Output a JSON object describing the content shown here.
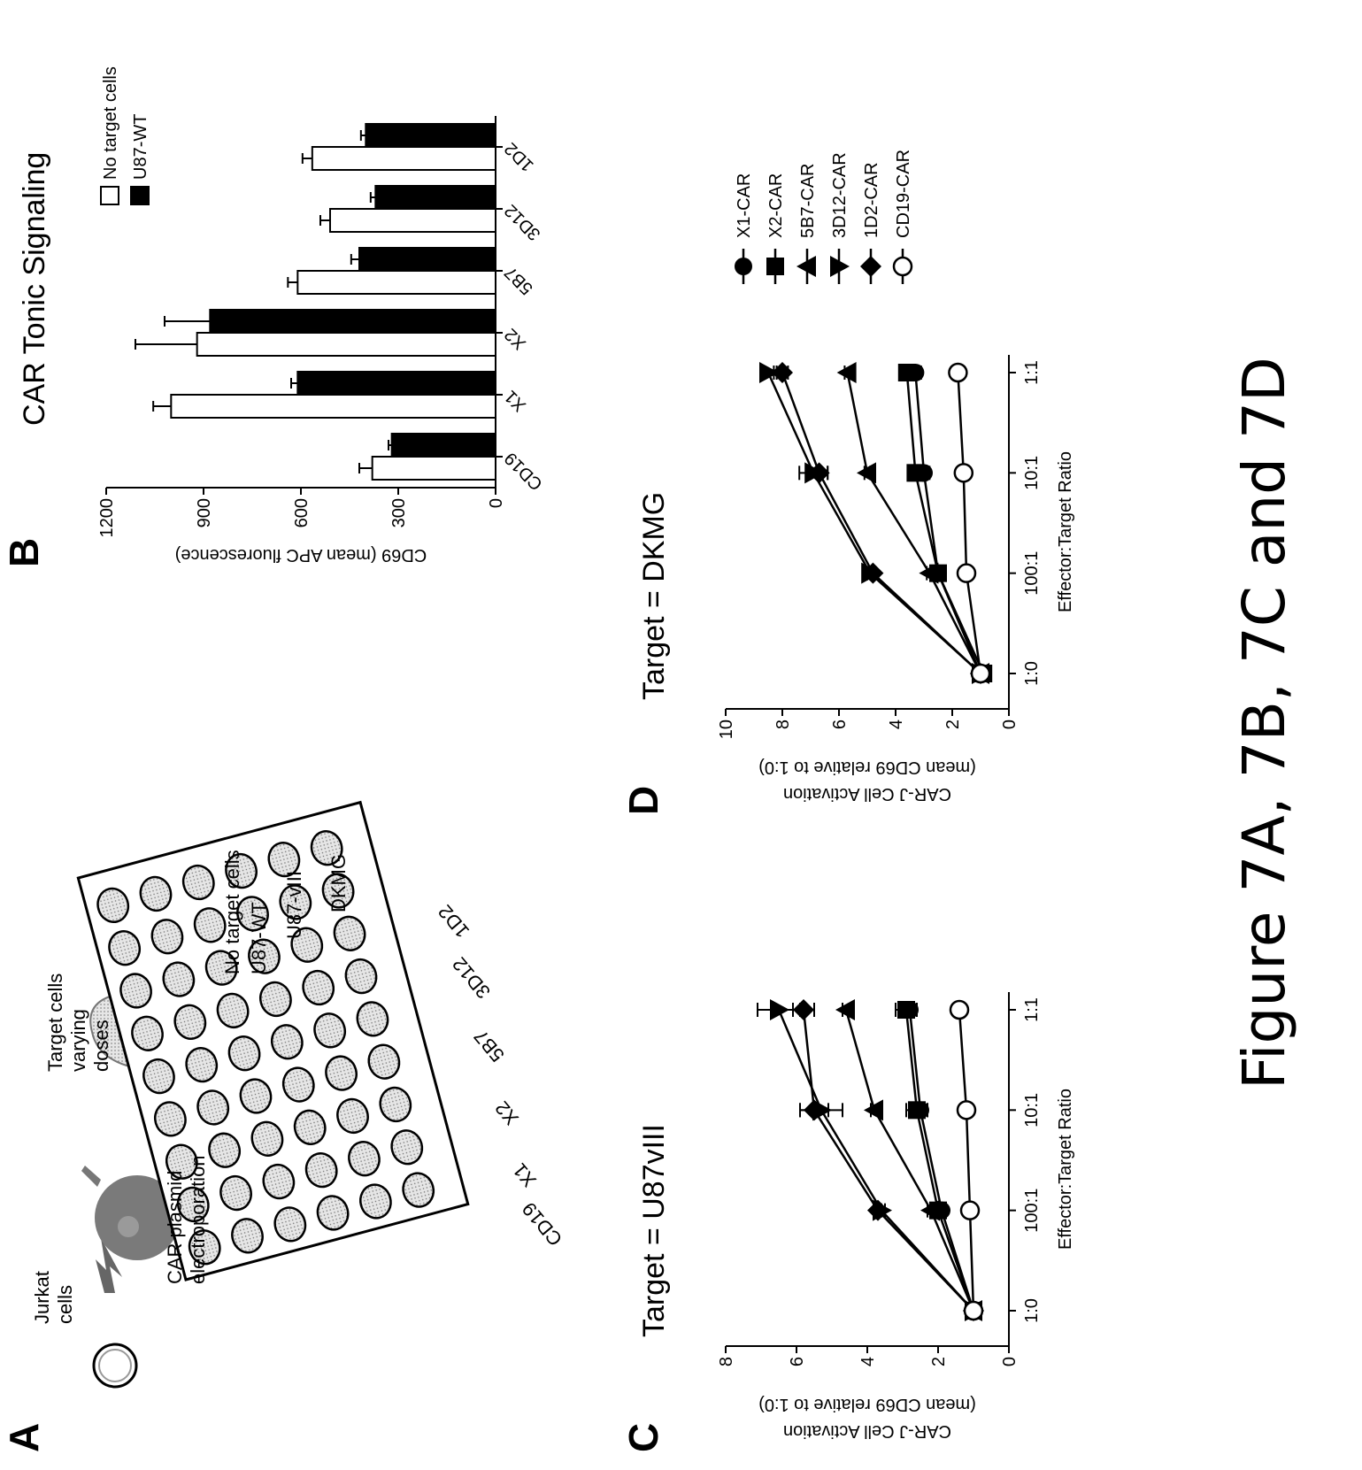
{
  "figure": {
    "caption": "Figure 7A, 7B, 7C and 7D"
  },
  "panel_a": {
    "letter": "A",
    "labels": {
      "jurkat": "Jurkat cells",
      "target": "Target cells varying doses",
      "plasmid": "CAR plasmid electroporation",
      "no_target": "No target cells",
      "u87wt": "U87-WT",
      "u87viii": "U87-vIII",
      "dkmg": "DKMG"
    },
    "column_labels": [
      "CD19",
      "X1",
      "X2",
      "5B7",
      "3D12",
      "1D2"
    ]
  },
  "chart_data": [
    {
      "panel": "B",
      "type": "bar",
      "title": "CAR Tonic Signaling",
      "xlabel": "",
      "ylabel": "CD69 (mean APC fluorescence)",
      "ylim": [
        0,
        1200
      ],
      "yticks": [
        0,
        300,
        600,
        900,
        1200
      ],
      "categories": [
        "CD19",
        "X1",
        "X2",
        "5B7",
        "3D12",
        "1D2"
      ],
      "legend_position": "top-right",
      "series": [
        {
          "name": "No target cells",
          "color": "#ffffff",
          "values": [
            380,
            1000,
            920,
            610,
            510,
            565
          ],
          "errors": [
            40,
            55,
            190,
            30,
            30,
            30
          ]
        },
        {
          "name": "U87-WT",
          "color": "#000000",
          "values": [
            320,
            610,
            880,
            420,
            370,
            400
          ],
          "errors": [
            10,
            20,
            140,
            25,
            15,
            15
          ]
        }
      ]
    },
    {
      "panel": "C",
      "type": "line",
      "title": "Target = U87vIII",
      "xlabel": "Effector:Target Ratio",
      "ylabel": "CAR-J Cell Activation (mean CD69 relative to 1:0)",
      "ylim": [
        0,
        8
      ],
      "yticks": [
        0,
        2,
        4,
        6,
        8
      ],
      "x": [
        "1:0",
        "100:1",
        "10:1",
        "1:1"
      ],
      "series": [
        {
          "name": "X1-CAR",
          "marker": "circle-filled",
          "values": [
            1.0,
            1.9,
            2.5,
            2.8
          ],
          "errors": [
            0,
            0.1,
            0.2,
            0.2
          ]
        },
        {
          "name": "X2-CAR",
          "marker": "square-filled",
          "values": [
            1.0,
            2.0,
            2.6,
            2.9
          ],
          "errors": [
            0,
            0.1,
            0.3,
            0.3
          ]
        },
        {
          "name": "5B7-CAR",
          "marker": "triangle-up-filled",
          "values": [
            1.0,
            2.2,
            3.8,
            4.6
          ],
          "errors": [
            0,
            0.1,
            0.1,
            0.1
          ]
        },
        {
          "name": "3D12-CAR",
          "marker": "triangle-down-filled",
          "values": [
            1.0,
            3.6,
            5.3,
            6.5
          ],
          "errors": [
            0,
            0.1,
            0.6,
            0.6
          ]
        },
        {
          "name": "1D2-CAR",
          "marker": "diamond-filled",
          "values": [
            1.0,
            3.7,
            5.5,
            5.8
          ],
          "errors": [
            0,
            0.1,
            0.4,
            0.3
          ]
        },
        {
          "name": "CD19-CAR",
          "marker": "circle-open",
          "values": [
            1.0,
            1.1,
            1.2,
            1.4
          ],
          "errors": [
            0,
            0.05,
            0.05,
            0.05
          ]
        }
      ]
    },
    {
      "panel": "D",
      "type": "line",
      "title": "Target = DKMG",
      "xlabel": "Effector:Target Ratio",
      "ylabel": "CAR-J Cell Activation (mean CD69 relative to 1:0)",
      "ylim": [
        0,
        10
      ],
      "yticks": [
        0,
        2,
        4,
        6,
        8,
        10
      ],
      "x": [
        "1:0",
        "100:1",
        "10:1",
        "1:1"
      ],
      "legend_position": "right",
      "series": [
        {
          "name": "X1-CAR",
          "marker": "circle-filled",
          "values": [
            1.0,
            2.5,
            3.0,
            3.3
          ],
          "errors": [
            0,
            0.1,
            0.2,
            0.2
          ]
        },
        {
          "name": "X2-CAR",
          "marker": "square-filled",
          "values": [
            0.9,
            2.5,
            3.3,
            3.6
          ],
          "errors": [
            0,
            0.1,
            0.2,
            0.2
          ]
        },
        {
          "name": "5B7-CAR",
          "marker": "triangle-up-filled",
          "values": [
            1.0,
            2.8,
            5.0,
            5.7
          ],
          "errors": [
            0,
            0.1,
            0.1,
            0.1
          ]
        },
        {
          "name": "3D12-CAR",
          "marker": "triangle-down-filled",
          "values": [
            1.0,
            4.9,
            6.9,
            8.5
          ],
          "errors": [
            0,
            0.1,
            0.5,
            0.2
          ]
        },
        {
          "name": "1D2-CAR",
          "marker": "diamond-filled",
          "values": [
            1.0,
            4.8,
            6.7,
            8.0
          ],
          "errors": [
            0,
            0.1,
            0.3,
            0.2
          ]
        },
        {
          "name": "CD19-CAR",
          "marker": "circle-open",
          "values": [
            1.0,
            1.5,
            1.6,
            1.8
          ],
          "errors": [
            0,
            0.05,
            0.05,
            0.05
          ]
        }
      ]
    }
  ]
}
